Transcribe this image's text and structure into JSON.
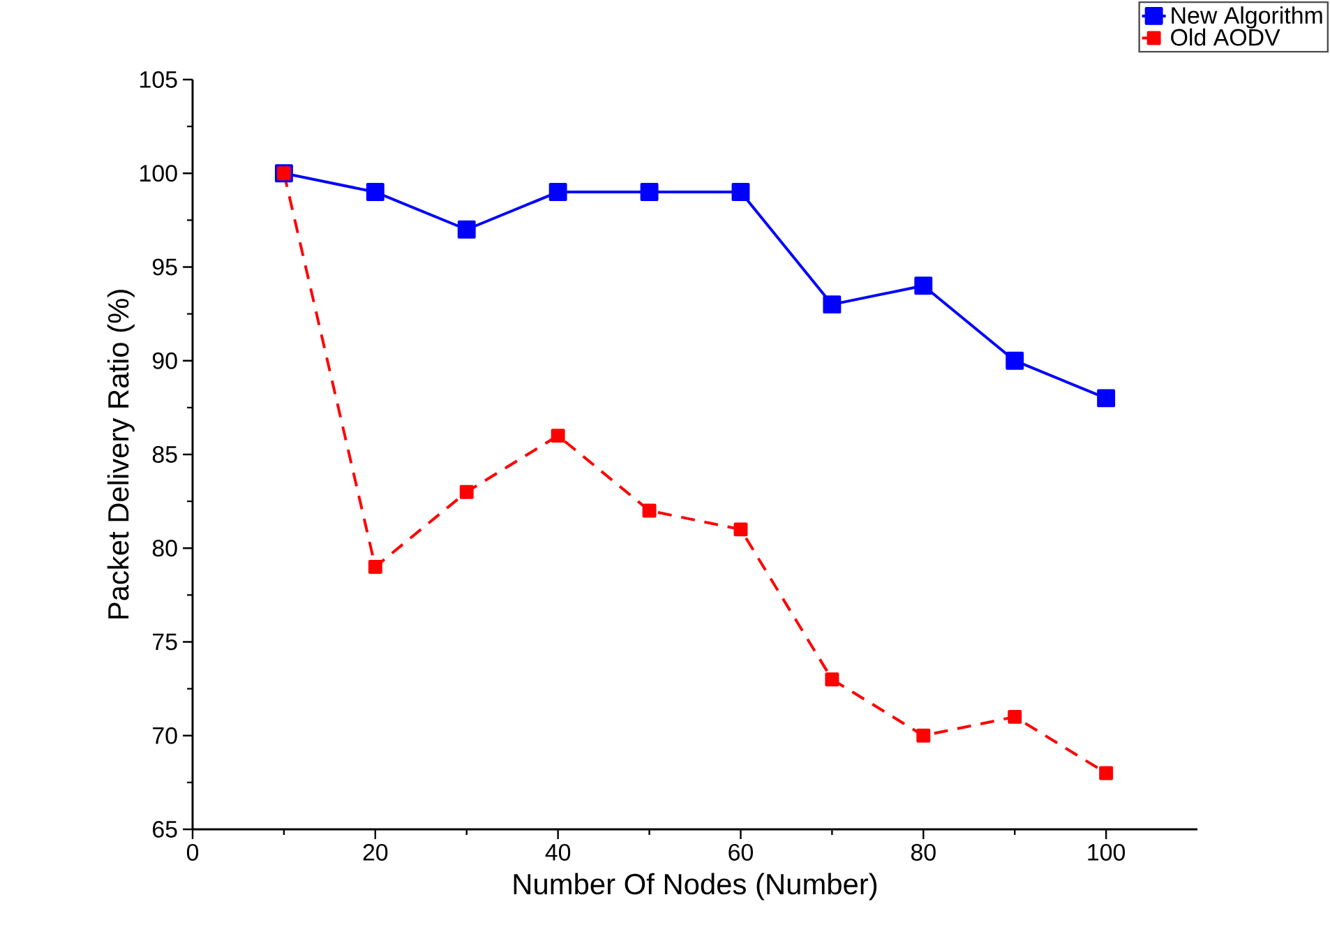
{
  "chart_data": {
    "type": "line",
    "xlabel": "Number Of Nodes (Number)",
    "ylabel": "Packet Delivery Ratio (%)",
    "x": [
      10,
      20,
      30,
      40,
      50,
      60,
      70,
      80,
      90,
      100
    ],
    "series": [
      {
        "name": "New Algorithm",
        "color": "#0000ff",
        "line_style": "solid",
        "values": [
          100,
          99,
          97,
          99,
          99,
          99,
          93,
          94,
          90,
          88
        ]
      },
      {
        "name": "Old AODV",
        "color": "#ff0000",
        "line_style": "dashed",
        "values": [
          100,
          79,
          83,
          86,
          82,
          81,
          73,
          70,
          71,
          68
        ]
      }
    ],
    "xlim": [
      0,
      110
    ],
    "xticks": [
      0,
      20,
      40,
      60,
      80,
      100
    ],
    "ylim": [
      65,
      105
    ],
    "yticks": [
      65,
      70,
      75,
      80,
      85,
      90,
      95,
      100,
      105
    ],
    "marker": "square",
    "legend": "top right",
    "grid": false
  }
}
